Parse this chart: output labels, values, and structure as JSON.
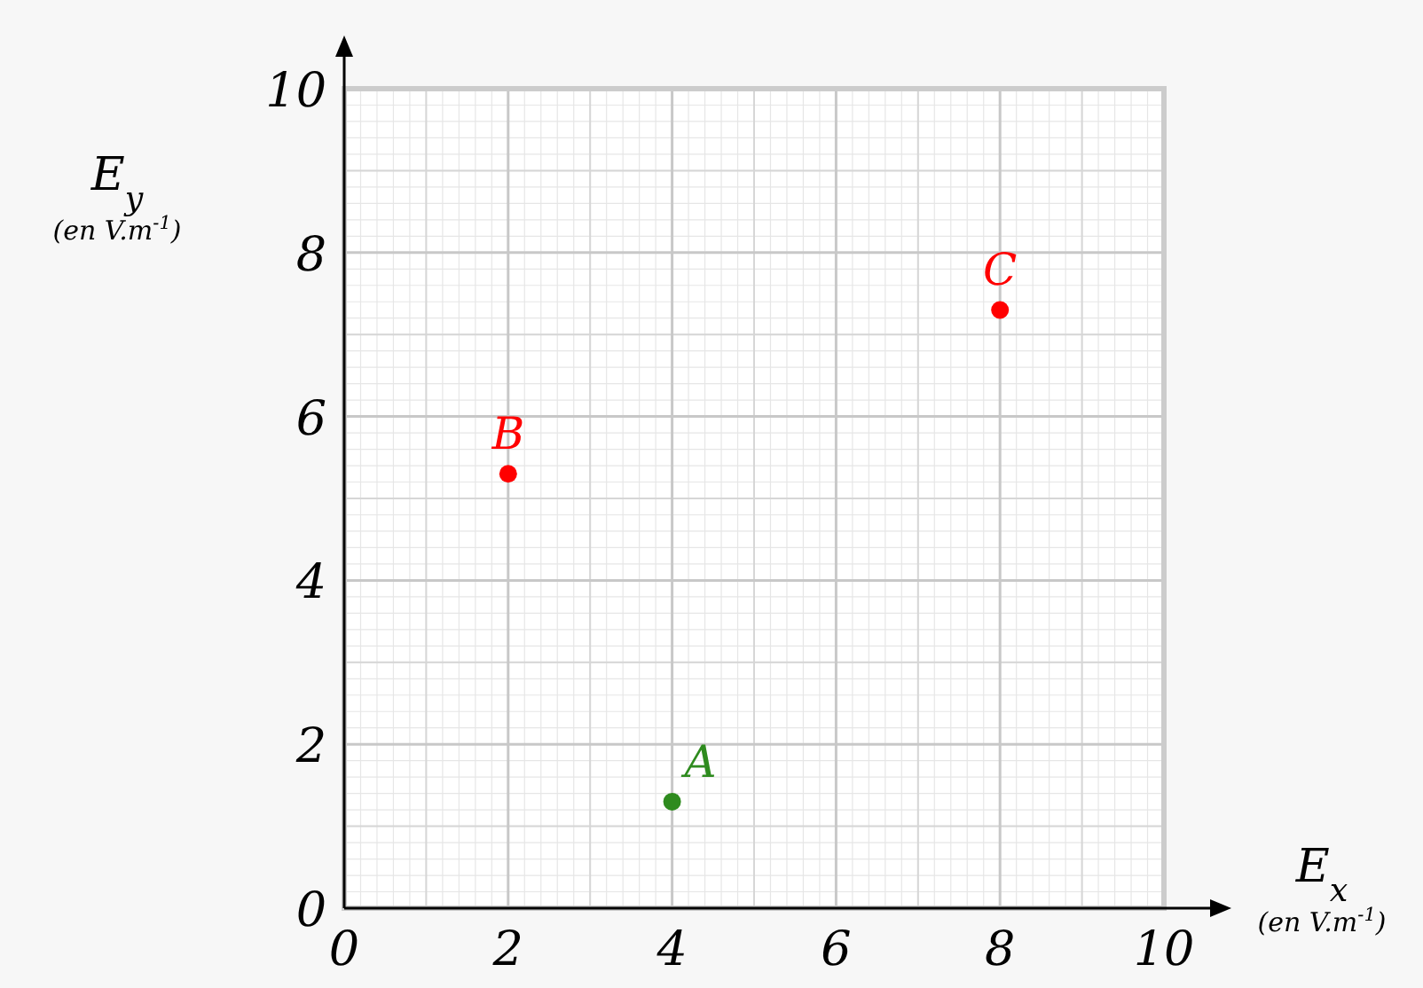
{
  "chart_data": {
    "type": "scatter",
    "xlabel": "E$_{x}$\n(en V.m$^{-1}$)",
    "ylabel": "E$_{y}$\n(en V.m$^{-1}$)",
    "x": [
      4,
      2,
      8
    ],
    "values": [
      1.3,
      5.3,
      7.3
    ],
    "colors": [
      "#2e8b1e",
      "#ff0000",
      "#ff0000"
    ],
    "marker": "circle",
    "xlim": [
      0,
      10
    ],
    "ylim": [
      0,
      10
    ],
    "xticks": [
      0,
      2,
      4,
      6,
      8,
      10
    ],
    "yticks": [
      0,
      2,
      4,
      6,
      8,
      10
    ],
    "grid": true,
    "annotations": [
      {
        "text": "A",
        "x": 4,
        "y": 1.3
      },
      {
        "text": "B",
        "x": 2,
        "y": 5.3
      },
      {
        "text": "C",
        "x": 8,
        "y": 7.3
      }
    ]
  }
}
